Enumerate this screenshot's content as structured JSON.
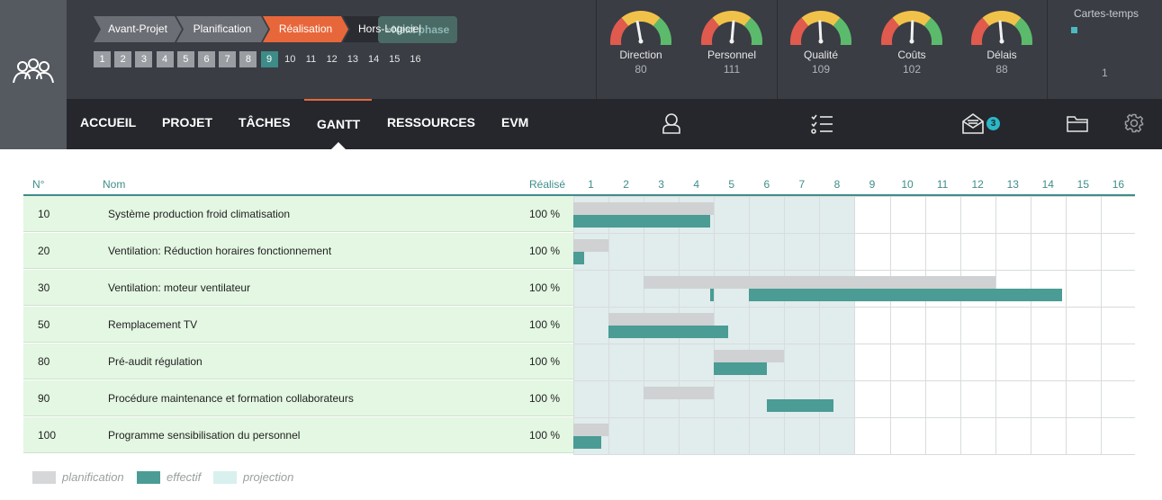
{
  "phases": [
    {
      "label": "Avant-Projet",
      "state": "done"
    },
    {
      "label": "Planification",
      "state": "done"
    },
    {
      "label": "Réalisation",
      "state": "active"
    },
    {
      "label": "Hors-Logiciel",
      "state": "dark"
    }
  ],
  "next_phase_label": "Next phase",
  "steps": [
    "1",
    "2",
    "3",
    "4",
    "5",
    "6",
    "7",
    "8",
    "9",
    "10",
    "11",
    "12",
    "13",
    "14",
    "15",
    "16"
  ],
  "current_step": "9",
  "menu": [
    "ACCUEIL",
    "PROJET",
    "TÂCHES",
    "GANTT",
    "RESSOURCES",
    "EVM"
  ],
  "active_menu": "GANTT",
  "gauges": [
    {
      "label": "Direction",
      "value": "80"
    },
    {
      "label": "Personnel",
      "value": "111"
    },
    {
      "label": "Qualité",
      "value": "109"
    },
    {
      "label": "Coûts",
      "value": "102"
    },
    {
      "label": "Délais",
      "value": "88"
    }
  ],
  "cartes": {
    "title": "Cartes-temps",
    "value": "1"
  },
  "icons": {
    "user": "user-icon",
    "tasks": "checklist-icon",
    "mail": "mail-icon",
    "folder": "folder-icon",
    "settings": "gear-icon"
  },
  "mail_badge": "3",
  "gantt": {
    "headers": {
      "num": "N°",
      "name": "Nom",
      "done": "Réalisé"
    },
    "weeks": [
      "1",
      "2",
      "3",
      "4",
      "5",
      "6",
      "7",
      "8",
      "9",
      "10",
      "11",
      "12",
      "13",
      "14",
      "15",
      "16"
    ],
    "tasks": [
      {
        "num": "10",
        "name": "Système production froid climatisation",
        "done": "100 %",
        "plan": [
          1,
          4
        ],
        "actual": [
          1,
          3.9
        ]
      },
      {
        "num": "20",
        "name": "Ventilation: Réduction horaires fonctionnement",
        "done": "100 %",
        "plan": [
          1,
          1
        ],
        "actual": [
          1,
          0.3
        ]
      },
      {
        "num": "30",
        "name": "Ventilation: moteur ventilateur",
        "done": "100 %",
        "plan": [
          3,
          4,
          6,
          7
        ],
        "actual": [
          4.9,
          0.1,
          6,
          8.9
        ]
      },
      {
        "num": "50",
        "name": "Remplacement TV",
        "done": "100 %",
        "plan": [
          2,
          3
        ],
        "actual": [
          2,
          3.4
        ]
      },
      {
        "num": "80",
        "name": "Pré-audit régulation",
        "done": "100 %",
        "plan": [
          5,
          2
        ],
        "actual": [
          5,
          1.5
        ]
      },
      {
        "num": "90",
        "name": "Procédure maintenance et formation collaborateurs",
        "done": "100 %",
        "plan": [
          3,
          2
        ],
        "actual": [
          6.5,
          1.9
        ]
      },
      {
        "num": "100",
        "name": "Programme sensibilisation du personnel",
        "done": "100 %",
        "plan": [
          1,
          1
        ],
        "actual": [
          1,
          0.8
        ]
      }
    ],
    "projection_weeks": 8
  },
  "legend": [
    {
      "label": "planification",
      "color": "#d6d7d8"
    },
    {
      "label": "effectif",
      "color": "#4a9c95"
    },
    {
      "label": "projection",
      "color": "#d8f0ee"
    }
  ]
}
